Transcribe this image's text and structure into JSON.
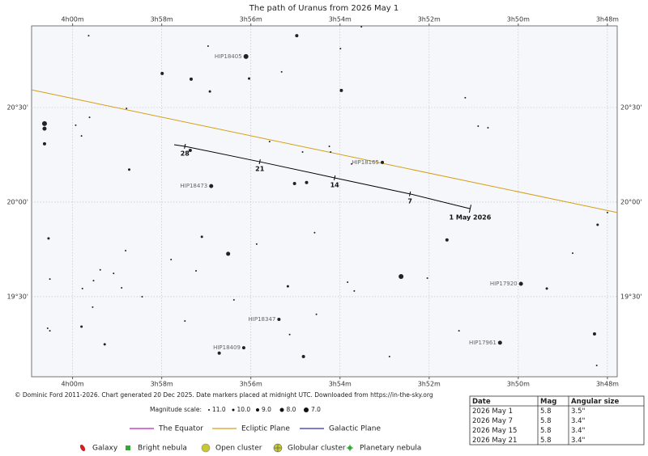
{
  "chart_data": {
    "type": "star_chart",
    "title": "The path of Uranus from 2026 May 1",
    "xlim": [
      240.92,
      227.78
    ],
    "ylim": [
      1144.6,
      1255.9
    ],
    "xticks": [
      {
        "value": 240,
        "label": "4h00m"
      },
      {
        "value": 238,
        "label": "3h58m"
      },
      {
        "value": 236,
        "label": "3h56m"
      },
      {
        "value": 234,
        "label": "3h54m"
      },
      {
        "value": 232,
        "label": "3h52m"
      },
      {
        "value": 230,
        "label": "3h50m"
      },
      {
        "value": 228,
        "label": "3h48m"
      }
    ],
    "yticks": [
      {
        "value": 1230,
        "label": "20°30'"
      },
      {
        "value": 1200,
        "label": "20°00'"
      },
      {
        "value": 1170,
        "label": "19°30'"
      }
    ],
    "grid": true,
    "star_color": "#222222",
    "stars": [
      {
        "x": 239.64,
        "y": 1252.8,
        "mag": 11
      },
      {
        "x": 236.11,
        "y": 1246.2,
        "mag": 7,
        "label": "HIP18405"
      },
      {
        "x": 234.97,
        "y": 1252.8,
        "mag": 9
      },
      {
        "x": 233.52,
        "y": 1255.6,
        "mag": 11
      },
      {
        "x": 236.96,
        "y": 1249.5,
        "mag": 11
      },
      {
        "x": 233.99,
        "y": 1248.7,
        "mag": 11
      },
      {
        "x": 237.99,
        "y": 1240.8,
        "mag": 9
      },
      {
        "x": 237.34,
        "y": 1239.0,
        "mag": 9
      },
      {
        "x": 236.04,
        "y": 1239.2,
        "mag": 10
      },
      {
        "x": 235.31,
        "y": 1241.3,
        "mag": 11
      },
      {
        "x": 236.92,
        "y": 1235.1,
        "mag": 10
      },
      {
        "x": 233.97,
        "y": 1235.4,
        "mag": 9
      },
      {
        "x": 231.19,
        "y": 1233.1,
        "mag": 11
      },
      {
        "x": 238.79,
        "y": 1229.7,
        "mag": 11
      },
      {
        "x": 240.63,
        "y": 1224.9,
        "mag": 7
      },
      {
        "x": 240.63,
        "y": 1223.3,
        "mag": 8
      },
      {
        "x": 239.93,
        "y": 1224.4,
        "mag": 11
      },
      {
        "x": 239.62,
        "y": 1226.9,
        "mag": 11
      },
      {
        "x": 239.8,
        "y": 1221.0,
        "mag": 11
      },
      {
        "x": 240.63,
        "y": 1218.5,
        "mag": 9
      },
      {
        "x": 235.58,
        "y": 1219.2,
        "mag": 11
      },
      {
        "x": 234.24,
        "y": 1217.7,
        "mag": 11
      },
      {
        "x": 234.84,
        "y": 1215.9,
        "mag": 11
      },
      {
        "x": 234.21,
        "y": 1215.9,
        "mag": 11
      },
      {
        "x": 237.36,
        "y": 1216.4,
        "mag": 9
      },
      {
        "x": 233.74,
        "y": 1212.1,
        "mag": 11
      },
      {
        "x": 233.05,
        "y": 1212.6,
        "mag": 9,
        "label": "HIP18165"
      },
      {
        "x": 238.73,
        "y": 1210.3,
        "mag": 10
      },
      {
        "x": 230.9,
        "y": 1224.1,
        "mag": 11
      },
      {
        "x": 230.68,
        "y": 1223.6,
        "mag": 11
      },
      {
        "x": 236.89,
        "y": 1205.1,
        "mag": 8,
        "label": "HIP18473"
      },
      {
        "x": 235.02,
        "y": 1205.9,
        "mag": 9
      },
      {
        "x": 234.75,
        "y": 1206.2,
        "mag": 9
      },
      {
        "x": 228.22,
        "y": 1192.8,
        "mag": 10
      },
      {
        "x": 228.0,
        "y": 1196.7,
        "mag": 11
      },
      {
        "x": 240.54,
        "y": 1188.5,
        "mag": 10
      },
      {
        "x": 237.1,
        "y": 1189.0,
        "mag": 10
      },
      {
        "x": 234.57,
        "y": 1190.3,
        "mag": 11
      },
      {
        "x": 235.87,
        "y": 1186.7,
        "mag": 11
      },
      {
        "x": 236.51,
        "y": 1183.6,
        "mag": 8
      },
      {
        "x": 237.79,
        "y": 1181.8,
        "mag": 11
      },
      {
        "x": 238.81,
        "y": 1184.6,
        "mag": 11
      },
      {
        "x": 239.38,
        "y": 1178.5,
        "mag": 11
      },
      {
        "x": 239.08,
        "y": 1177.4,
        "mag": 11
      },
      {
        "x": 237.23,
        "y": 1178.2,
        "mag": 11
      },
      {
        "x": 240.51,
        "y": 1175.6,
        "mag": 11
      },
      {
        "x": 239.53,
        "y": 1175.1,
        "mag": 11
      },
      {
        "x": 239.78,
        "y": 1172.6,
        "mag": 11
      },
      {
        "x": 238.9,
        "y": 1172.8,
        "mag": 11
      },
      {
        "x": 238.44,
        "y": 1170.0,
        "mag": 11
      },
      {
        "x": 235.17,
        "y": 1173.3,
        "mag": 10
      },
      {
        "x": 233.83,
        "y": 1174.6,
        "mag": 11
      },
      {
        "x": 233.68,
        "y": 1171.8,
        "mag": 11
      },
      {
        "x": 232.63,
        "y": 1176.4,
        "mag": 7
      },
      {
        "x": 232.04,
        "y": 1175.9,
        "mag": 11
      },
      {
        "x": 231.6,
        "y": 1188.0,
        "mag": 9
      },
      {
        "x": 229.94,
        "y": 1174.1,
        "mag": 8,
        "label": "HIP17920"
      },
      {
        "x": 229.36,
        "y": 1172.6,
        "mag": 10
      },
      {
        "x": 228.78,
        "y": 1183.8,
        "mag": 11
      },
      {
        "x": 239.55,
        "y": 1166.7,
        "mag": 11
      },
      {
        "x": 236.38,
        "y": 1169.0,
        "mag": 11
      },
      {
        "x": 234.53,
        "y": 1164.4,
        "mag": 11
      },
      {
        "x": 235.37,
        "y": 1162.8,
        "mag": 9,
        "label": "HIP18347"
      },
      {
        "x": 237.48,
        "y": 1162.3,
        "mag": 11
      },
      {
        "x": 239.8,
        "y": 1160.5,
        "mag": 10
      },
      {
        "x": 240.56,
        "y": 1160.0,
        "mag": 11
      },
      {
        "x": 240.51,
        "y": 1159.2,
        "mag": 11
      },
      {
        "x": 231.33,
        "y": 1159.2,
        "mag": 11
      },
      {
        "x": 228.29,
        "y": 1158.2,
        "mag": 9
      },
      {
        "x": 235.13,
        "y": 1158.0,
        "mag": 11
      },
      {
        "x": 239.28,
        "y": 1154.9,
        "mag": 10
      },
      {
        "x": 236.16,
        "y": 1153.8,
        "mag": 9,
        "label": "HIP18409"
      },
      {
        "x": 230.41,
        "y": 1155.4,
        "mag": 8,
        "label": "HIP17961"
      },
      {
        "x": 236.71,
        "y": 1152.1,
        "mag": 9
      },
      {
        "x": 234.82,
        "y": 1151.0,
        "mag": 9
      },
      {
        "x": 232.89,
        "y": 1151.0,
        "mag": 11
      },
      {
        "x": 228.24,
        "y": 1148.2,
        "mag": 11
      }
    ],
    "ecliptic": {
      "color": "#d4a017",
      "x": [
        240.92,
        227.78
      ],
      "y": [
        1235.6,
        1196.7
      ]
    },
    "path": {
      "color": "#000000",
      "x": [
        231.08,
        232.43,
        234.12,
        235.8,
        237.48,
        237.72
      ],
      "y": [
        1197.9,
        1202.6,
        1207.7,
        1212.8,
        1217.7,
        1218.2
      ],
      "labels": [
        "1 May 2026",
        "7",
        "14",
        "21",
        "28",
        null
      ]
    }
  },
  "footer": {
    "credit": "© Dominic Ford 2011-2026. Chart generated 20 Dec 2025. Date markers placed at midnight UTC. Downloaded from https://in-the-sky.org",
    "magnitude_scale": {
      "label": "Magnitude scale:",
      "items": [
        {
          "value": 11,
          "label": "11.0"
        },
        {
          "value": 10,
          "label": "10.0"
        },
        {
          "value": 9,
          "label": "9.0"
        },
        {
          "value": 8,
          "label": "8.0"
        },
        {
          "value": 7,
          "label": "7.0"
        }
      ]
    },
    "lines": [
      {
        "name": "The Equator",
        "color": "#c020c0"
      },
      {
        "name": "Ecliptic Plane",
        "color": "#d4a017"
      },
      {
        "name": "Galactic Plane",
        "color": "#3030b0"
      }
    ],
    "objects": [
      {
        "name": "Galaxy",
        "color": "#cc2222"
      },
      {
        "name": "Bright nebula",
        "color": "#33aa33"
      },
      {
        "name": "Open cluster",
        "color": "#c8c830"
      },
      {
        "name": "Globular cluster",
        "color": "#c8c830"
      },
      {
        "name": "Planetary nebula",
        "color": "#33aa33"
      }
    ]
  },
  "ephemeris_table": {
    "header": [
      "Date",
      "Mag",
      "Angular size"
    ],
    "rows": [
      [
        "2026 May 1",
        5.8,
        "3.5\""
      ],
      [
        "2026 May 7",
        5.8,
        "3.4\""
      ],
      [
        "2026 May 15",
        5.8,
        "3.4\""
      ],
      [
        "2026 May 21",
        5.8,
        "3.4\""
      ]
    ]
  }
}
